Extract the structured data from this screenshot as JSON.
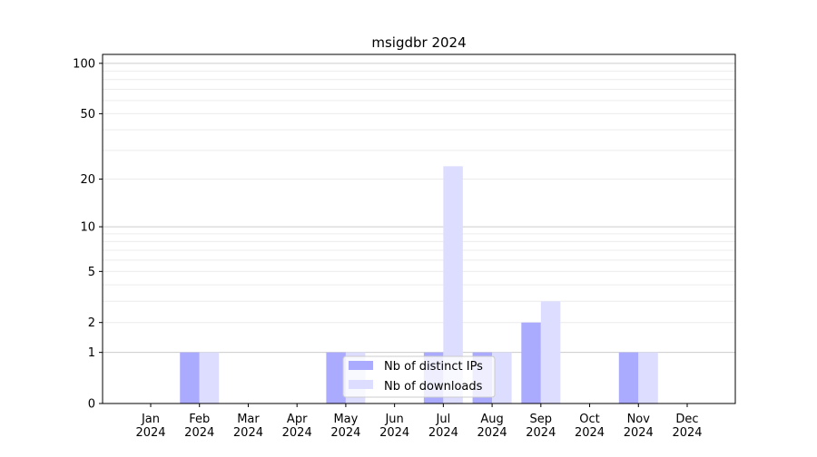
{
  "chart_data": {
    "type": "bar",
    "title": "msigdbr 2024",
    "xlabel": "",
    "ylabel": "",
    "yscale": "log(1+y)",
    "ylim": [
      0,
      113
    ],
    "yticks": [
      0,
      1,
      2,
      5,
      10,
      20,
      50,
      100
    ],
    "grid": true,
    "legend_position": "bottom-center",
    "categories": [
      "Jan\n2024",
      "Feb\n2024",
      "Mar\n2024",
      "Apr\n2024",
      "May\n2024",
      "Jun\n2024",
      "Jul\n2024",
      "Aug\n2024",
      "Sep\n2024",
      "Oct\n2024",
      "Nov\n2024",
      "Dec\n2024"
    ],
    "series": [
      {
        "name": "Nb of distinct IPs",
        "color": "#aaaaff",
        "values": [
          0,
          1,
          0,
          0,
          1,
          0,
          1,
          1,
          2,
          0,
          1,
          0
        ]
      },
      {
        "name": "Nb of downloads",
        "color": "#ddddff",
        "values": [
          0,
          1,
          0,
          0,
          1,
          0,
          24,
          1,
          3,
          0,
          1,
          0
        ]
      }
    ]
  }
}
